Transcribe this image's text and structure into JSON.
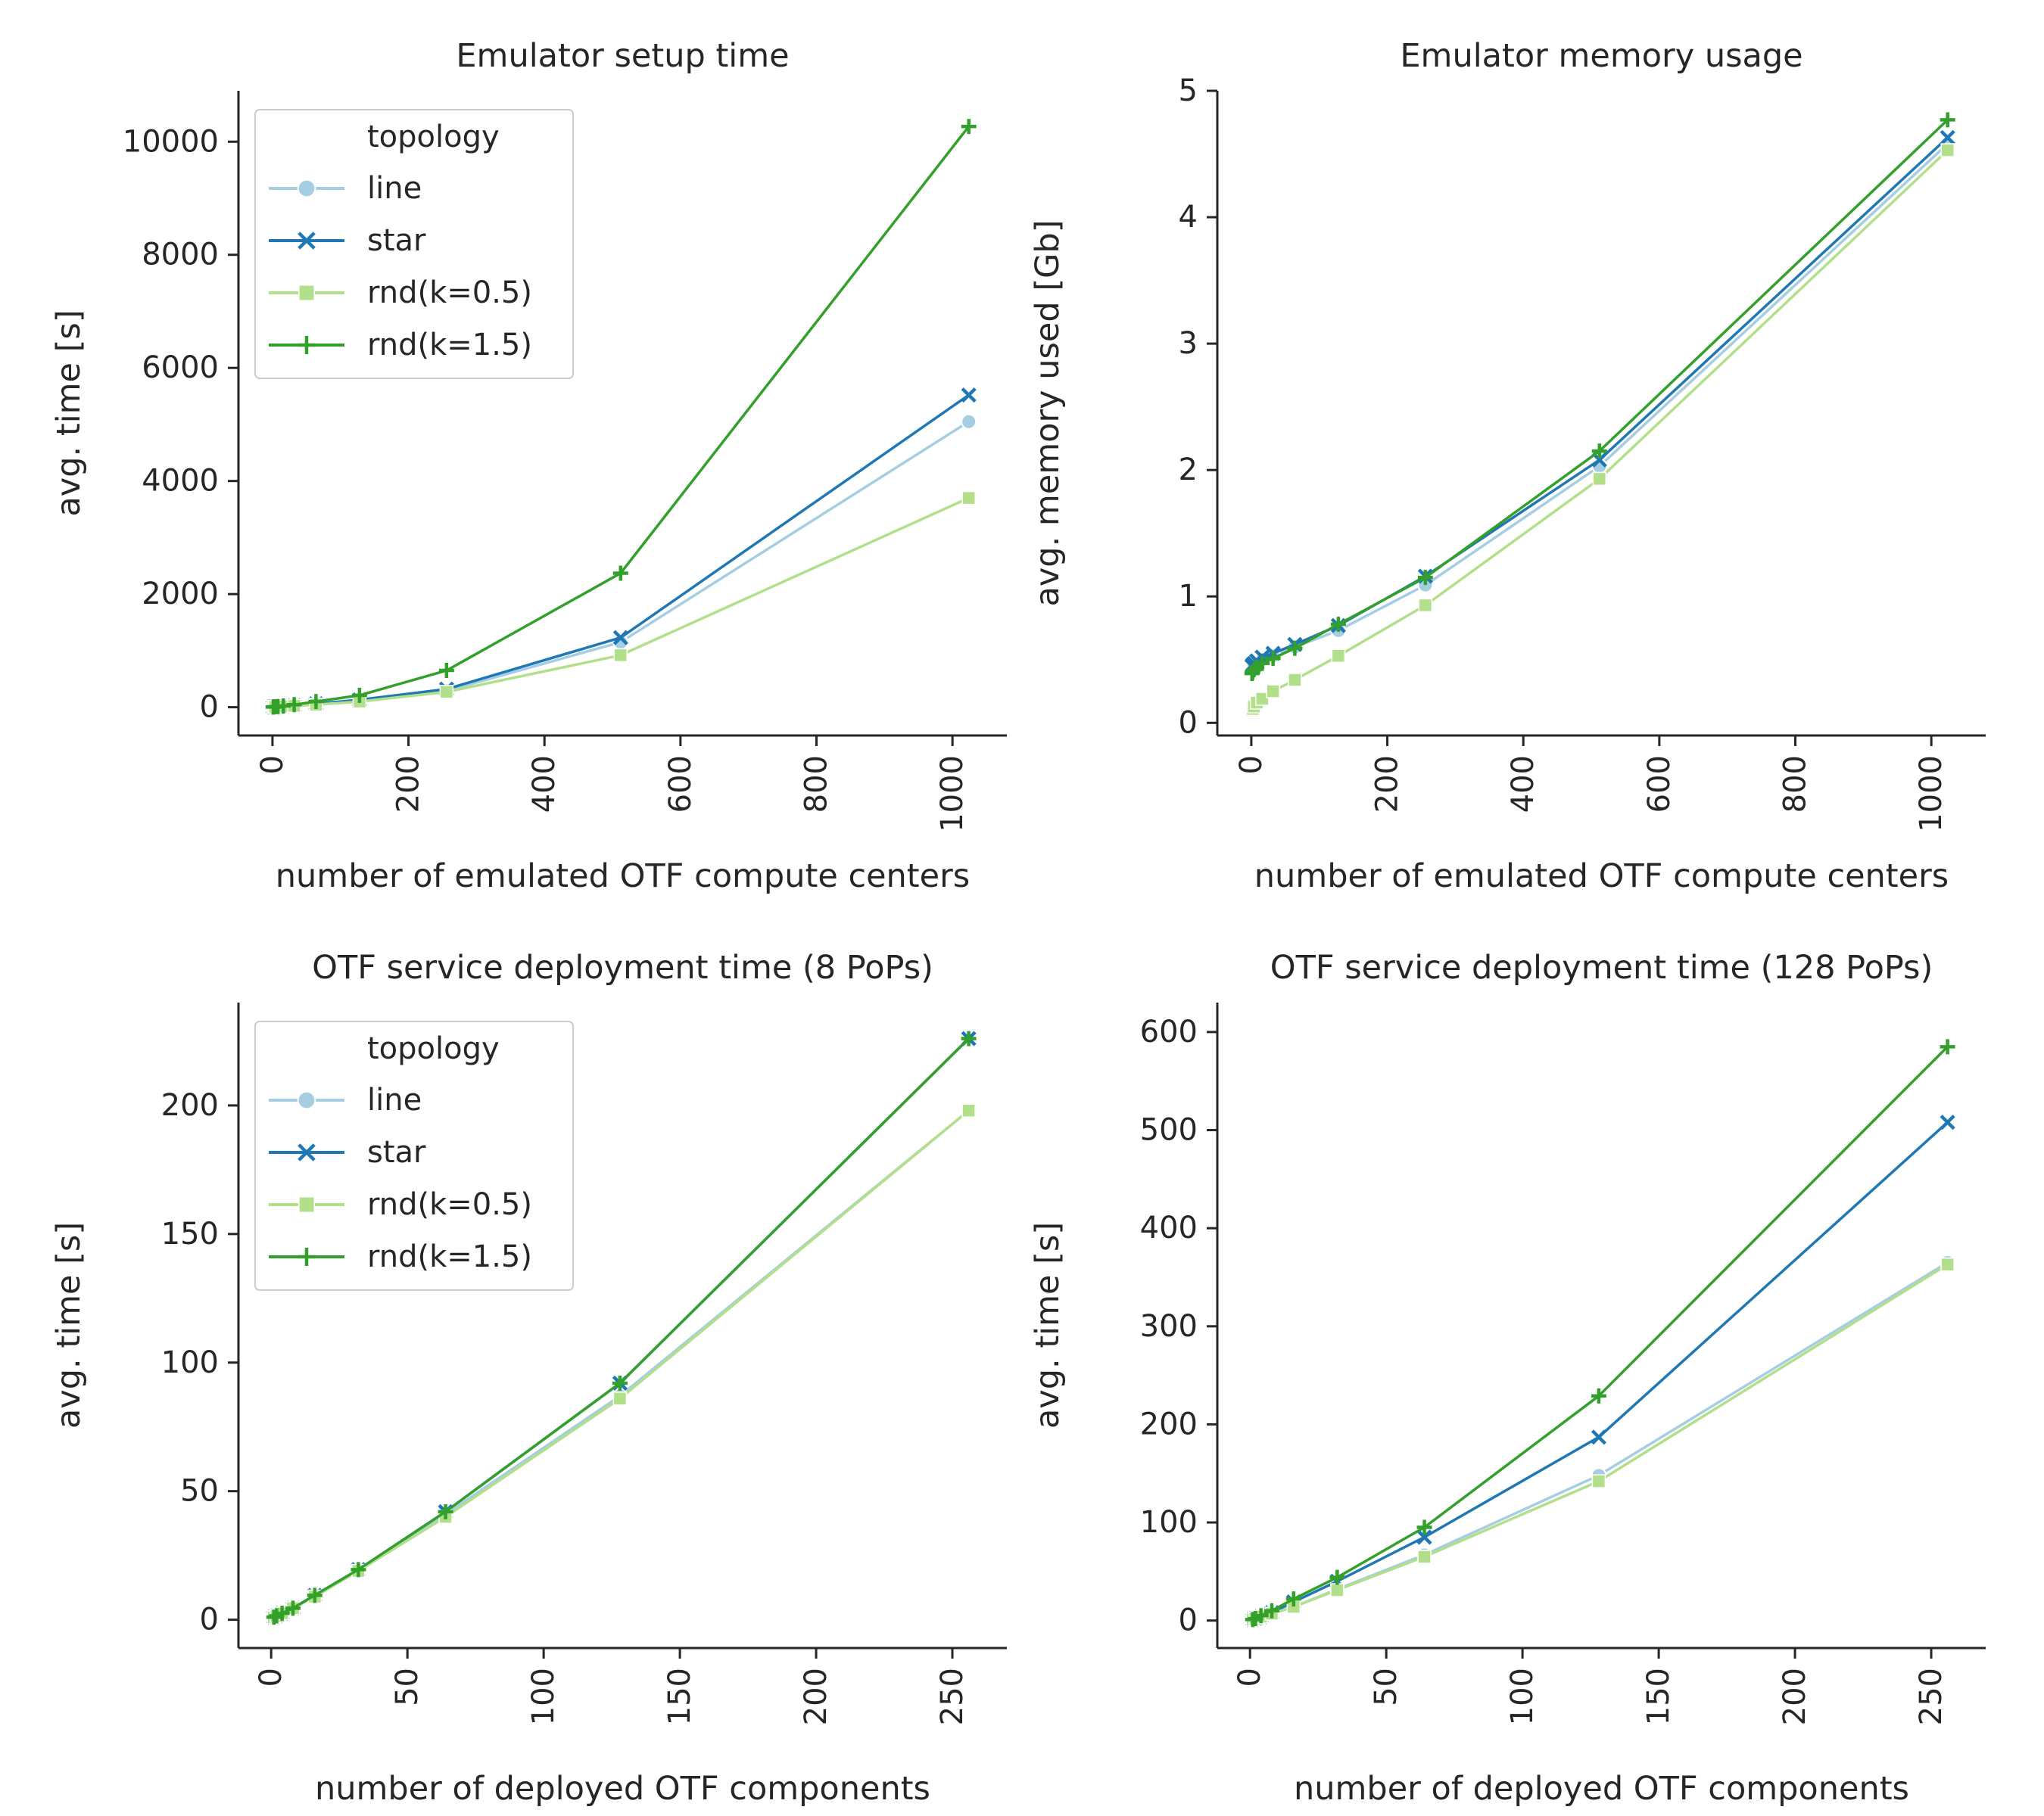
{
  "figure": {
    "legend_title": "topology"
  },
  "colors": {
    "line": "#a6cee3",
    "star": "#1f78b4",
    "rnd(k=0.5)": "#b2df8a",
    "rnd(k=1.5)": "#33a02c",
    "axis": "#262626"
  },
  "markers": {
    "line": "circle",
    "star": "x",
    "rnd(k=0.5)": "square",
    "rnd(k=1.5)": "plus"
  },
  "chart_data": [
    {
      "type": "line",
      "title": "Emulator setup time",
      "xlabel": "number of emulated OTF compute centers",
      "ylabel": "avg. time [s]",
      "xlim": [
        -50,
        1080
      ],
      "ylim": [
        -500,
        10900
      ],
      "xticks": [
        0,
        200,
        400,
        600,
        800,
        1000
      ],
      "yticks": [
        0,
        2000,
        4000,
        6000,
        8000,
        10000
      ],
      "x": [
        1,
        2,
        4,
        8,
        16,
        32,
        64,
        128,
        256,
        512,
        1024
      ],
      "legend": "top-left",
      "grid": false,
      "series": [
        {
          "name": "line",
          "values": [
            3,
            4,
            6,
            9,
            14,
            26,
            55,
            120,
            290,
            1150,
            5050
          ]
        },
        {
          "name": "star",
          "values": [
            3,
            4,
            6,
            9,
            15,
            28,
            60,
            130,
            320,
            1230,
            5520
          ]
        },
        {
          "name": "rnd(k=0.5)",
          "values": [
            3,
            4,
            6,
            8,
            13,
            24,
            45,
            100,
            270,
            920,
            3700
          ]
        },
        {
          "name": "rnd(k=1.5)",
          "values": [
            3,
            5,
            8,
            12,
            22,
            45,
            100,
            210,
            650,
            2370,
            10270
          ]
        }
      ]
    },
    {
      "type": "line",
      "title": "Emulator memory usage",
      "xlabel": "number of emulated OTF compute centers",
      "ylabel": "avg. memory used [Gb]",
      "xlim": [
        -50,
        1080
      ],
      "ylim": [
        -0.1,
        5.0
      ],
      "xticks": [
        0,
        200,
        400,
        600,
        800,
        1000
      ],
      "yticks": [
        0,
        1,
        2,
        3,
        4,
        5
      ],
      "x": [
        1,
        2,
        4,
        8,
        16,
        32,
        64,
        128,
        256,
        512,
        1024
      ],
      "grid": false,
      "series": [
        {
          "name": "line",
          "values": [
            0.44,
            0.45,
            0.46,
            0.48,
            0.5,
            0.53,
            0.6,
            0.73,
            1.09,
            2.03,
            4.58
          ]
        },
        {
          "name": "star",
          "values": [
            0.45,
            0.46,
            0.47,
            0.49,
            0.52,
            0.55,
            0.62,
            0.77,
            1.16,
            2.08,
            4.63
          ]
        },
        {
          "name": "rnd(k=0.5)",
          "values": [
            0.1,
            0.11,
            0.13,
            0.16,
            0.19,
            0.25,
            0.34,
            0.53,
            0.93,
            1.93,
            4.53
          ]
        },
        {
          "name": "rnd(k=1.5)",
          "values": [
            0.39,
            0.4,
            0.42,
            0.44,
            0.47,
            0.51,
            0.59,
            0.78,
            1.15,
            2.15,
            4.77
          ]
        }
      ]
    },
    {
      "type": "line",
      "title": "OTF service deployment time (8 PoPs)",
      "xlabel": "number of deployed OTF components",
      "ylabel": "avg. time [s]",
      "xlim": [
        -12,
        270
      ],
      "ylim": [
        -11,
        240
      ],
      "xticks": [
        0,
        50,
        100,
        150,
        200,
        250
      ],
      "yticks": [
        0,
        50,
        100,
        150,
        200
      ],
      "x": [
        1,
        2,
        4,
        8,
        16,
        32,
        64,
        128,
        256
      ],
      "legend": "top-left",
      "grid": false,
      "series": [
        {
          "name": "line",
          "values": [
            1,
            1.5,
            2.5,
            4.5,
            9,
            19,
            41,
            87,
            198
          ]
        },
        {
          "name": "star",
          "values": [
            1,
            1.5,
            2.5,
            4.5,
            9.5,
            19.5,
            42,
            92,
            226
          ]
        },
        {
          "name": "rnd(k=0.5)",
          "values": [
            1,
            1.5,
            2.5,
            4.5,
            9,
            19,
            40,
            86,
            198
          ]
        },
        {
          "name": "rnd(k=1.5)",
          "values": [
            1,
            1.5,
            2.5,
            4.5,
            9.5,
            19.5,
            42,
            92,
            226
          ]
        }
      ]
    },
    {
      "type": "line",
      "title": "OTF service deployment time (128 PoPs)",
      "xlabel": "number of deployed OTF components",
      "ylabel": "avg. time [s]",
      "xlim": [
        -12,
        270
      ],
      "ylim": [
        -28,
        630
      ],
      "xticks": [
        0,
        50,
        100,
        150,
        200,
        250
      ],
      "yticks": [
        0,
        100,
        200,
        300,
        400,
        500,
        600
      ],
      "x": [
        1,
        2,
        4,
        8,
        16,
        32,
        64,
        128,
        256
      ],
      "grid": false,
      "series": [
        {
          "name": "line",
          "values": [
            1,
            2,
            4,
            7,
            14,
            32,
            67,
            148,
            365
          ]
        },
        {
          "name": "star",
          "values": [
            1,
            2,
            4,
            8,
            19,
            40,
            85,
            187,
            508
          ]
        },
        {
          "name": "rnd(k=0.5)",
          "values": [
            1,
            2,
            4,
            7,
            14,
            31,
            65,
            142,
            363
          ]
        },
        {
          "name": "rnd(k=1.5)",
          "values": [
            1,
            2,
            5,
            10,
            22,
            44,
            95,
            229,
            585
          ]
        }
      ]
    }
  ]
}
